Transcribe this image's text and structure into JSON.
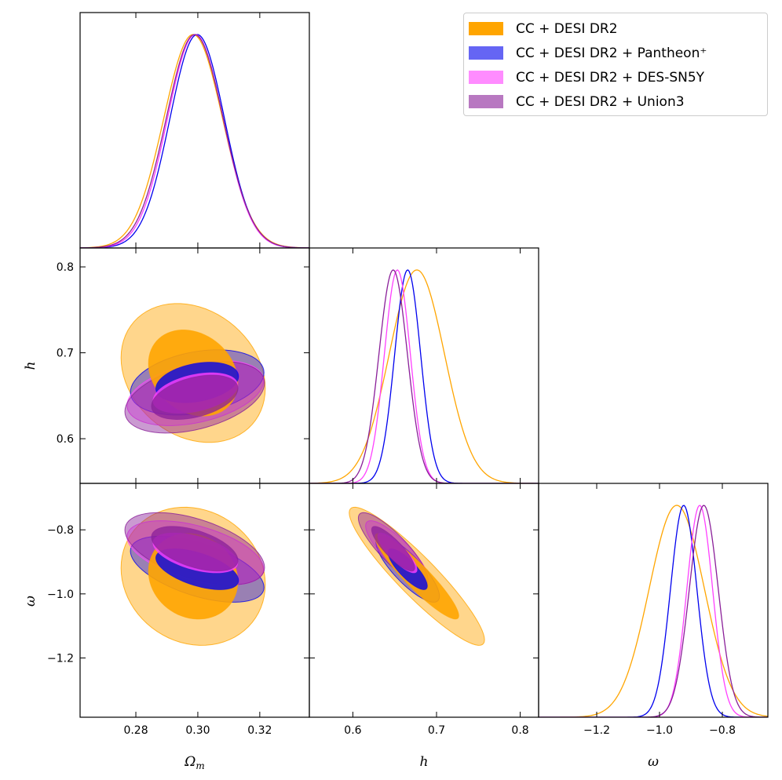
{
  "chart_data": {
    "type": "corner",
    "parameters": [
      {
        "key": "om",
        "label_main": "Ω",
        "label_sub": "m",
        "range": [
          0.262,
          0.336
        ],
        "ticks": [
          0.28,
          0.3,
          0.32
        ],
        "tick_labels": [
          "0.28",
          "0.30",
          "0.32"
        ]
      },
      {
        "key": "h",
        "label_main": "h",
        "label_sub": "",
        "range": [
          0.548,
          0.822
        ],
        "ticks": [
          0.6,
          0.7,
          0.8
        ],
        "tick_labels": [
          "0.6",
          "0.7",
          "0.8"
        ]
      },
      {
        "key": "w",
        "label_main": "ω",
        "label_sub": "",
        "range": [
          -1.385,
          -0.655
        ],
        "ticks": [
          -1.2,
          -1.0,
          -0.8
        ],
        "tick_labels": [
          "−1.2",
          "−1.0",
          "−0.8"
        ]
      }
    ],
    "series": [
      {
        "name": "CC + DESI DR2",
        "color": "#FFA500",
        "fill_opacity_outer": 0.45,
        "fill_opacity_inner": 0.9,
        "mean": {
          "om": 0.2985,
          "h": 0.6765,
          "w": -0.945
        },
        "sigma": {
          "om": 0.0095,
          "h": 0.033,
          "w": 0.088
        },
        "corr": {
          "om_h": -0.22,
          "om_w": -0.12,
          "h_w": -0.92
        }
      },
      {
        "name": "CC + DESI DR2 + Pantheon⁺",
        "color": "#0000EE",
        "fill_opacity_outer": 0.4,
        "fill_opacity_inner": 0.8,
        "mean": {
          "om": 0.2998,
          "h": 0.6655,
          "w": -0.923
        },
        "sigma": {
          "om": 0.0088,
          "h": 0.0155,
          "w": 0.042
        },
        "corr": {
          "om_h": 0.3,
          "om_w": -0.55,
          "h_w": -0.82
        }
      },
      {
        "name": "CC + DESI DR2 + DES-SN5Y",
        "color": "#FF40FF",
        "fill_opacity_outer": 0.4,
        "fill_opacity_inner": 0.8,
        "mean": {
          "om": 0.2992,
          "h": 0.6532,
          "w": -0.872
        },
        "sigma": {
          "om": 0.009,
          "h": 0.0155,
          "w": 0.041
        },
        "corr": {
          "om_h": 0.38,
          "om_w": -0.5,
          "h_w": -0.84
        }
      },
      {
        "name": "CC + DESI DR2 + Union3",
        "color": "#8A1F99",
        "fill_opacity_outer": 0.45,
        "fill_opacity_inner": 0.75,
        "mean": {
          "om": 0.299,
          "h": 0.6482,
          "w": -0.859
        },
        "sigma": {
          "om": 0.0092,
          "h": 0.017,
          "w": 0.046
        },
        "corr": {
          "om_h": 0.4,
          "om_w": -0.52,
          "h_w": -0.85
        }
      }
    ],
    "contour_levels": [
      "68%",
      "95%"
    ],
    "legend_position": "top-right"
  }
}
